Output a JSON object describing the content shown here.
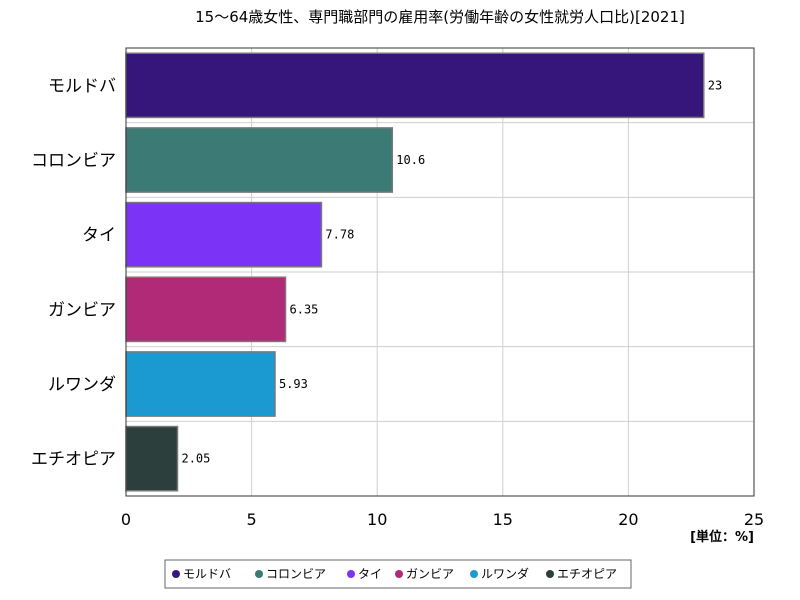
{
  "chart_data": {
    "type": "bar",
    "orientation": "horizontal",
    "title": "15〜64歳女性、専門職部門の雇用率(労働年齢の女性就労人口比)[2021]",
    "unit_label": "[単位：%]",
    "categories": [
      "モルドバ",
      "コロンビア",
      "タイ",
      "ガンビア",
      "ルワンダ",
      "エチオピア"
    ],
    "values": [
      23,
      10.6,
      7.78,
      6.35,
      5.93,
      2.05
    ],
    "value_labels": [
      "23",
      "10.6",
      "7.78",
      "6.35",
      "5.93",
      "2.05"
    ],
    "colors": [
      "#36167a",
      "#3b7a75",
      "#7b34f5",
      "#b02a78",
      "#1b9ad2",
      "#2c3f3d"
    ],
    "xlim": [
      0,
      25
    ],
    "xticks": [
      "0",
      "5",
      "10",
      "15",
      "20",
      "25"
    ],
    "grid": true,
    "legend_position": "bottom",
    "legend": [
      "モルドバ",
      "コロンビア",
      "タイ",
      "ガンビア",
      "ルワンダ",
      "エチオピア"
    ]
  }
}
